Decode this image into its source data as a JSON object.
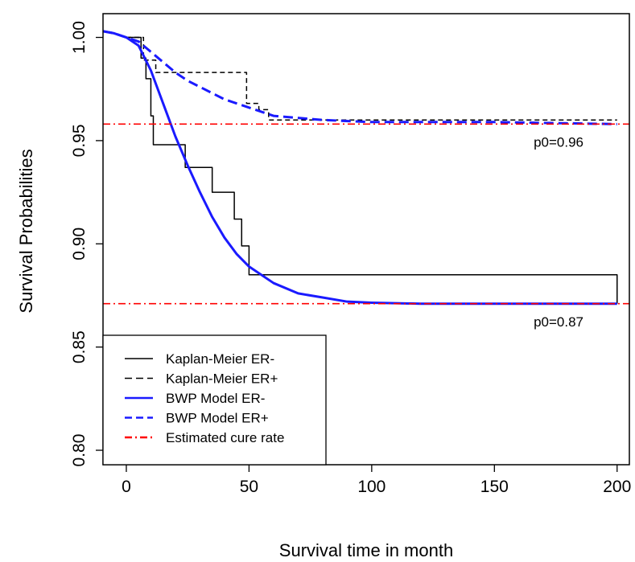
{
  "chart_data": {
    "type": "line",
    "title": "",
    "xlabel": "Survival time in month",
    "ylabel": "Survival Probabilities",
    "xlim": [
      -9.5,
      205
    ],
    "ylim": [
      0.793,
      1.0115
    ],
    "x_ticks": [
      0,
      50,
      100,
      150,
      200
    ],
    "y_ticks": [
      0.8,
      0.85,
      0.9,
      0.95,
      1.0
    ],
    "x_tick_labels": [
      "0",
      "50",
      "100",
      "150",
      "200"
    ],
    "y_tick_labels": [
      "0.80",
      "0.85",
      "0.90",
      "0.95",
      "1.00"
    ],
    "grid": false,
    "legend_position": "bottom-left",
    "series": [
      {
        "name": "Kaplan-Meier ER-",
        "style": "step",
        "color": "#000000",
        "dash": "solid",
        "x": [
          0,
          6,
          8,
          10,
          11,
          24,
          35,
          44,
          47,
          50,
          200
        ],
        "y": [
          1.0,
          0.99,
          0.98,
          0.962,
          0.948,
          0.937,
          0.925,
          0.912,
          0.899,
          0.885,
          0.871
        ]
      },
      {
        "name": "Kaplan-Meier ER+",
        "style": "step",
        "color": "#000000",
        "dash": "dashed",
        "x": [
          0,
          7,
          12,
          18,
          49,
          54,
          58,
          200
        ],
        "y": [
          1.0,
          0.989,
          0.983,
          0.983,
          0.968,
          0.965,
          0.96,
          0.96
        ]
      },
      {
        "name": "BWP Model ER-",
        "style": "smooth",
        "color": "#1a1aff",
        "dash": "solid",
        "x": [
          -9.5,
          -5,
          0,
          5,
          10,
          15,
          20,
          25,
          30,
          35,
          40,
          45,
          50,
          60,
          70,
          80,
          90,
          100,
          120,
          140,
          160,
          180,
          200
        ],
        "y": [
          1.003,
          1.002,
          1.0,
          0.996,
          0.984,
          0.968,
          0.952,
          0.938,
          0.925,
          0.913,
          0.903,
          0.895,
          0.889,
          0.881,
          0.876,
          0.874,
          0.872,
          0.8715,
          0.871,
          0.871,
          0.871,
          0.871,
          0.871
        ]
      },
      {
        "name": "BWP Model ER+",
        "style": "smooth",
        "color": "#1a1aff",
        "dash": "dashed",
        "x": [
          -9.5,
          -5,
          0,
          5,
          10,
          15,
          20,
          25,
          30,
          35,
          40,
          50,
          60,
          70,
          80,
          100,
          120,
          150,
          200
        ],
        "y": [
          1.003,
          1.002,
          1.0,
          0.998,
          0.993,
          0.988,
          0.983,
          0.979,
          0.976,
          0.973,
          0.97,
          0.966,
          0.962,
          0.961,
          0.96,
          0.959,
          0.959,
          0.959,
          0.958
        ]
      },
      {
        "name": "Estimated cure rate",
        "style": "hline",
        "color": "#ff0000",
        "dash": "dashdot",
        "values": [
          0.958,
          0.871
        ]
      }
    ],
    "annotations": [
      {
        "text": "p0=0.96",
        "x": 166,
        "y": 0.954
      },
      {
        "text": "p0=0.87",
        "x": 166,
        "y": 0.867
      }
    ]
  }
}
